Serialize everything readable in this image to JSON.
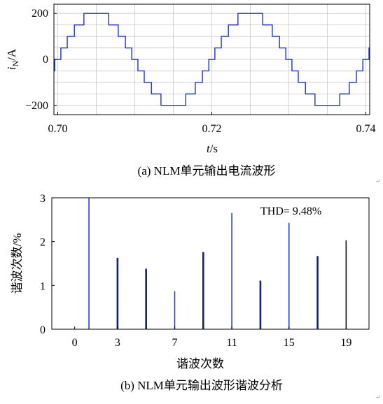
{
  "chart_data": [
    {
      "type": "line",
      "ylabel_main": "i",
      "ylabel_sub": "N",
      "ylabel_unit": "/A",
      "xlabel_main": "t",
      "xlabel_unit": "/s",
      "xticks": [
        "0.70",
        "0.72",
        "0.74"
      ],
      "xtick_values": [
        0.7,
        0.72,
        0.74
      ],
      "yticks": [
        "200",
        "0",
        "−200"
      ],
      "ytick_values": [
        200,
        0,
        -200
      ],
      "xlim": [
        0.6995,
        0.7405
      ],
      "ylim": [
        -240,
        240
      ],
      "grid": true,
      "color": "#1f2fd8",
      "caption": "(a) NLM单元输出电流波形",
      "waveform": {
        "period": 0.02,
        "t0": 0.6995,
        "t_end": 0.7405,
        "phase_time_at_peak": 0.705,
        "levels": 9,
        "amplitude": 200
      }
    },
    {
      "type": "bar",
      "ylabel": "谐波次数/%",
      "xlabel": "谐波次数",
      "xticks": [
        "0",
        "3",
        "7",
        "11",
        "15",
        "19"
      ],
      "xtick_values": [
        0,
        3,
        7,
        11,
        15,
        19
      ],
      "yticks": [
        "0",
        "1",
        "2",
        "3"
      ],
      "ytick_values": [
        0,
        1,
        2,
        3
      ],
      "xlim": [
        -1.6,
        20.6
      ],
      "ylim": [
        0,
        3
      ],
      "annotation": "THD= 9.48%",
      "caption": "(b) NLM单元输出波形谐波分析",
      "bars": [
        {
          "x": 1,
          "value": 3.0,
          "color": "#2a3af0"
        },
        {
          "x": 3,
          "value": 1.63,
          "color": "#14207a"
        },
        {
          "x": 5,
          "value": 1.38,
          "color": "#14207a"
        },
        {
          "x": 7,
          "value": 0.87,
          "color": "#2a3af0"
        },
        {
          "x": 9,
          "value": 1.76,
          "color": "#14207a"
        },
        {
          "x": 11,
          "value": 2.65,
          "color": "#2a3af0"
        },
        {
          "x": 13,
          "value": 1.11,
          "color": "#14207a"
        },
        {
          "x": 15,
          "value": 2.43,
          "color": "#2a3af0"
        },
        {
          "x": 17,
          "value": 1.67,
          "color": "#14207a"
        },
        {
          "x": 19,
          "value": 2.03,
          "color": "#101010"
        }
      ]
    }
  ]
}
